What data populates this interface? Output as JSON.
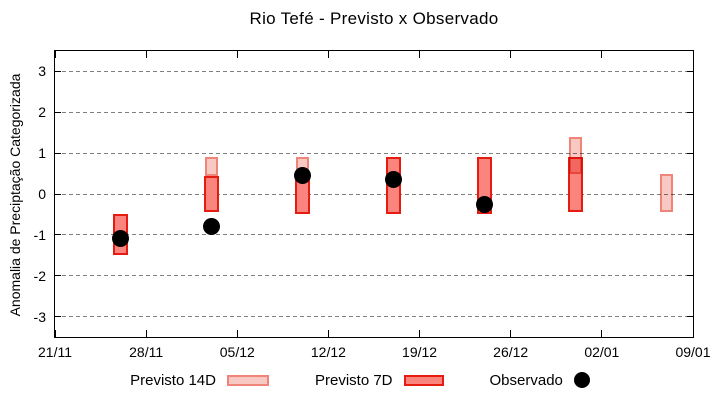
{
  "chart_data": {
    "type": "bar",
    "title": "Rio Tefé - Previsto x Observado",
    "xlabel": "",
    "ylabel": "Anomalia de Preciptação Categorizada",
    "y_range": [
      -3.5,
      3.5
    ],
    "x_range_days": [
      0,
      49
    ],
    "grid": "horizontal-dashed",
    "legend_position": "bottom-center",
    "y_ticks": [
      {
        "label": "3",
        "value": 3
      },
      {
        "label": "2",
        "value": 2
      },
      {
        "label": "1",
        "value": 1
      },
      {
        "label": "0",
        "value": 0
      },
      {
        "label": "-1",
        "value": -1
      },
      {
        "label": "-2",
        "value": -2
      },
      {
        "label": "-3",
        "value": -3
      }
    ],
    "x_ticks": [
      {
        "label": "21/11",
        "day": 0
      },
      {
        "label": "28/11",
        "day": 7
      },
      {
        "label": "05/12",
        "day": 14
      },
      {
        "label": "12/12",
        "day": 21
      },
      {
        "label": "19/12",
        "day": 28
      },
      {
        "label": "26/12",
        "day": 35
      },
      {
        "label": "02/01",
        "day": 42
      },
      {
        "label": "09/01",
        "day": 49
      }
    ],
    "series": [
      {
        "name": "Previsto 7D",
        "key": "p7",
        "type": "range-bar",
        "fill": "#f9857e",
        "border": "#e61c10",
        "points": [
          {
            "day": 5,
            "low": -1.5,
            "high": -0.5
          },
          {
            "day": 12,
            "low": -0.45,
            "high": 0.45
          },
          {
            "day": 19,
            "low": -0.5,
            "high": 0.45
          },
          {
            "day": 26,
            "low": -0.5,
            "high": 0.9
          },
          {
            "day": 33,
            "low": -0.5,
            "high": 0.9
          },
          {
            "day": 40,
            "low": -0.45,
            "high": 0.9
          }
        ]
      },
      {
        "name": "Previsto 14D",
        "key": "p14",
        "type": "range-bar",
        "fill": "#f8c8c3",
        "border": "#ef8478",
        "points": [
          {
            "day": 12,
            "low": 0.45,
            "high": 0.9
          },
          {
            "day": 19,
            "low": 0.45,
            "high": 0.9
          },
          {
            "day": 40,
            "low": 0.5,
            "high": 1.4
          },
          {
            "day": 47,
            "low": -0.45,
            "high": 0.5
          }
        ]
      },
      {
        "name": "Observado",
        "key": "obs",
        "type": "scatter",
        "fill": "#000000",
        "points": [
          {
            "day": 5,
            "value": -1.1
          },
          {
            "day": 12,
            "value": -0.8
          },
          {
            "day": 19,
            "value": 0.45
          },
          {
            "day": 26,
            "value": 0.35
          },
          {
            "day": 33,
            "value": -0.25
          }
        ]
      }
    ]
  },
  "legend": {
    "items": [
      {
        "label": "Previsto 14D",
        "key": "p14"
      },
      {
        "label": "Previsto 7D",
        "key": "p7"
      },
      {
        "label": "Observado",
        "key": "obs"
      }
    ]
  },
  "colors": {
    "p14_fill": "#f8c8c3",
    "p14_border": "#ef8478",
    "p7_fill": "#f9857e",
    "p7_border": "#e61c10",
    "overlap_fill": "#f2706a",
    "observed": "#000000",
    "grid": "#7f7f7f",
    "axis": "#000000",
    "background": "#ffffff"
  }
}
